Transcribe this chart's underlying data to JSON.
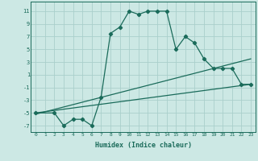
{
  "xlabel": "Humidex (Indice chaleur)",
  "background_color": "#cce8e4",
  "grid_color": "#aacfcb",
  "line_color": "#1a6b5a",
  "xlim": [
    -0.5,
    23.5
  ],
  "ylim": [
    -8,
    12.5
  ],
  "xticks": [
    0,
    1,
    2,
    3,
    4,
    5,
    6,
    7,
    8,
    9,
    10,
    11,
    12,
    13,
    14,
    15,
    16,
    17,
    18,
    19,
    20,
    21,
    22,
    23
  ],
  "yticks": [
    -7,
    -5,
    -3,
    -1,
    1,
    3,
    5,
    7,
    9,
    11
  ],
  "series": [
    {
      "x": [
        0,
        2,
        3,
        4,
        5,
        6,
        7,
        8,
        9,
        10,
        11,
        12,
        13,
        14,
        15,
        16,
        17,
        18,
        19,
        20,
        21,
        22,
        23
      ],
      "y": [
        -5,
        -5,
        -7,
        -6,
        -6,
        -7,
        -2.5,
        7.5,
        8.5,
        11,
        10.5,
        11,
        11,
        11,
        5,
        7,
        6,
        3.5,
        2,
        2,
        2,
        -0.5,
        -0.5
      ],
      "has_markers": true
    },
    {
      "x": [
        0,
        23
      ],
      "y": [
        -5,
        -0.5
      ],
      "has_markers": false
    },
    {
      "x": [
        0,
        23
      ],
      "y": [
        -5.2,
        3.5
      ],
      "has_markers": false
    }
  ]
}
